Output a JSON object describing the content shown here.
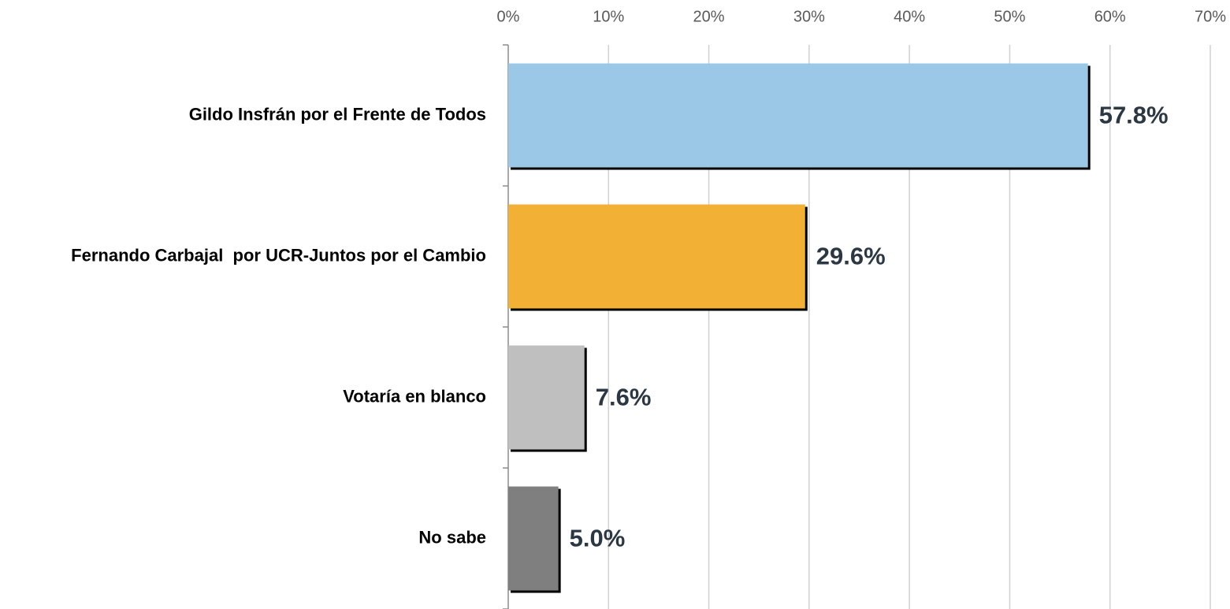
{
  "chart_data": {
    "type": "bar",
    "orientation": "horizontal",
    "categories": [
      "Gildo Insfrán por el Frente de Todos",
      "Fernando Carbajal  por UCR-Juntos por el Cambio",
      "Votaría en blanco",
      "No sabe"
    ],
    "values": [
      57.8,
      29.6,
      7.6,
      5.0
    ],
    "value_labels": [
      "57.8%",
      "29.6%",
      "7.6%",
      "5.0%"
    ],
    "colors": [
      "#9bc8e6",
      "#f2b035",
      "#bfbfbf",
      "#7f7f7f"
    ],
    "xlim": [
      0,
      70
    ],
    "xticks": [
      {
        "value": 0,
        "label": "0%"
      },
      {
        "value": 10,
        "label": "10%"
      },
      {
        "value": 20,
        "label": "20%"
      },
      {
        "value": 30,
        "label": "30%"
      },
      {
        "value": 40,
        "label": "40%"
      },
      {
        "value": 50,
        "label": "50%"
      },
      {
        "value": 60,
        "label": "60%"
      },
      {
        "value": 70,
        "label": "70%"
      }
    ],
    "grid": true
  }
}
